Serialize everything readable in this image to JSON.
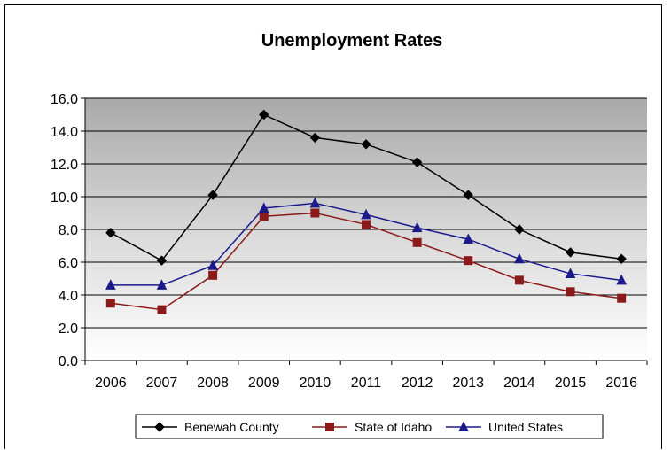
{
  "chart_data": {
    "type": "line",
    "title": "Unemployment Rates",
    "xlabel": "",
    "ylabel": "",
    "categories": [
      "2006",
      "2007",
      "2008",
      "2009",
      "2010",
      "2011",
      "2012",
      "2013",
      "2014",
      "2015",
      "2016"
    ],
    "y_ticks": [
      "0.0",
      "2.0",
      "4.0",
      "6.0",
      "8.0",
      "10.0",
      "12.0",
      "14.0",
      "16.0"
    ],
    "ylim": [
      0,
      16
    ],
    "grid": "horizontal",
    "legend": "bottom",
    "series": [
      {
        "name": "Benewah County",
        "marker": "diamond",
        "color": "#000000",
        "values": [
          7.8,
          6.1,
          10.1,
          15.0,
          13.6,
          13.2,
          12.1,
          10.1,
          8.0,
          6.6,
          6.2
        ]
      },
      {
        "name": "State of Idaho",
        "marker": "square",
        "color": "#8b1a1a",
        "values": [
          3.5,
          3.1,
          5.2,
          8.8,
          9.0,
          8.3,
          7.2,
          6.1,
          4.9,
          4.2,
          3.8
        ]
      },
      {
        "name": "United States",
        "marker": "triangle",
        "color": "#1a1a8b",
        "values": [
          4.6,
          4.6,
          5.8,
          9.3,
          9.6,
          8.9,
          8.1,
          7.4,
          6.2,
          5.3,
          4.9
        ]
      }
    ]
  }
}
